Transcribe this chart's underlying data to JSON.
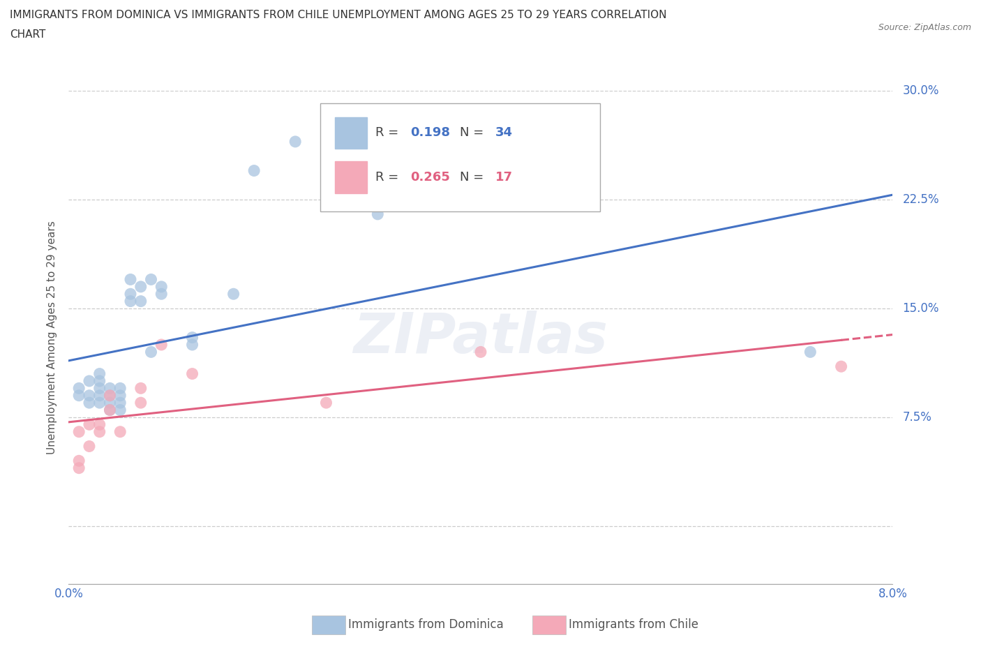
{
  "title_line1": "IMMIGRANTS FROM DOMINICA VS IMMIGRANTS FROM CHILE UNEMPLOYMENT AMONG AGES 25 TO 29 YEARS CORRELATION",
  "title_line2": "CHART",
  "source": "Source: ZipAtlas.com",
  "ylabel": "Unemployment Among Ages 25 to 29 years",
  "x_min": 0.0,
  "x_max": 0.08,
  "y_min": -0.04,
  "y_max": 0.3,
  "x_ticks": [
    0.0,
    0.01,
    0.02,
    0.03,
    0.04,
    0.05,
    0.06,
    0.07,
    0.08
  ],
  "y_ticks": [
    0.0,
    0.075,
    0.15,
    0.225,
    0.3
  ],
  "dominica_x": [
    0.001,
    0.001,
    0.002,
    0.002,
    0.002,
    0.003,
    0.003,
    0.003,
    0.003,
    0.003,
    0.004,
    0.004,
    0.004,
    0.004,
    0.005,
    0.005,
    0.005,
    0.005,
    0.006,
    0.006,
    0.006,
    0.007,
    0.007,
    0.008,
    0.008,
    0.009,
    0.009,
    0.012,
    0.012,
    0.016,
    0.018,
    0.022,
    0.03,
    0.072
  ],
  "dominica_y": [
    0.09,
    0.095,
    0.085,
    0.09,
    0.1,
    0.085,
    0.09,
    0.095,
    0.1,
    0.105,
    0.08,
    0.085,
    0.09,
    0.095,
    0.08,
    0.085,
    0.09,
    0.095,
    0.155,
    0.16,
    0.17,
    0.155,
    0.165,
    0.12,
    0.17,
    0.16,
    0.165,
    0.13,
    0.125,
    0.16,
    0.245,
    0.265,
    0.215,
    0.12
  ],
  "chile_x": [
    0.001,
    0.001,
    0.001,
    0.002,
    0.002,
    0.003,
    0.003,
    0.004,
    0.004,
    0.005,
    0.007,
    0.007,
    0.009,
    0.012,
    0.025,
    0.04,
    0.075
  ],
  "chile_y": [
    0.04,
    0.045,
    0.065,
    0.055,
    0.07,
    0.065,
    0.07,
    0.08,
    0.09,
    0.065,
    0.085,
    0.095,
    0.125,
    0.105,
    0.085,
    0.12,
    0.11
  ],
  "dominica_color": "#a8c4e0",
  "chile_color": "#f4a9b8",
  "dominica_line_color": "#4472c4",
  "chile_line_color": "#e06080",
  "dominica_R": 0.198,
  "dominica_N": 34,
  "chile_R": 0.265,
  "chile_N": 17,
  "watermark_text": "ZIPatlas",
  "background_color": "#ffffff",
  "grid_color": "#cccccc"
}
